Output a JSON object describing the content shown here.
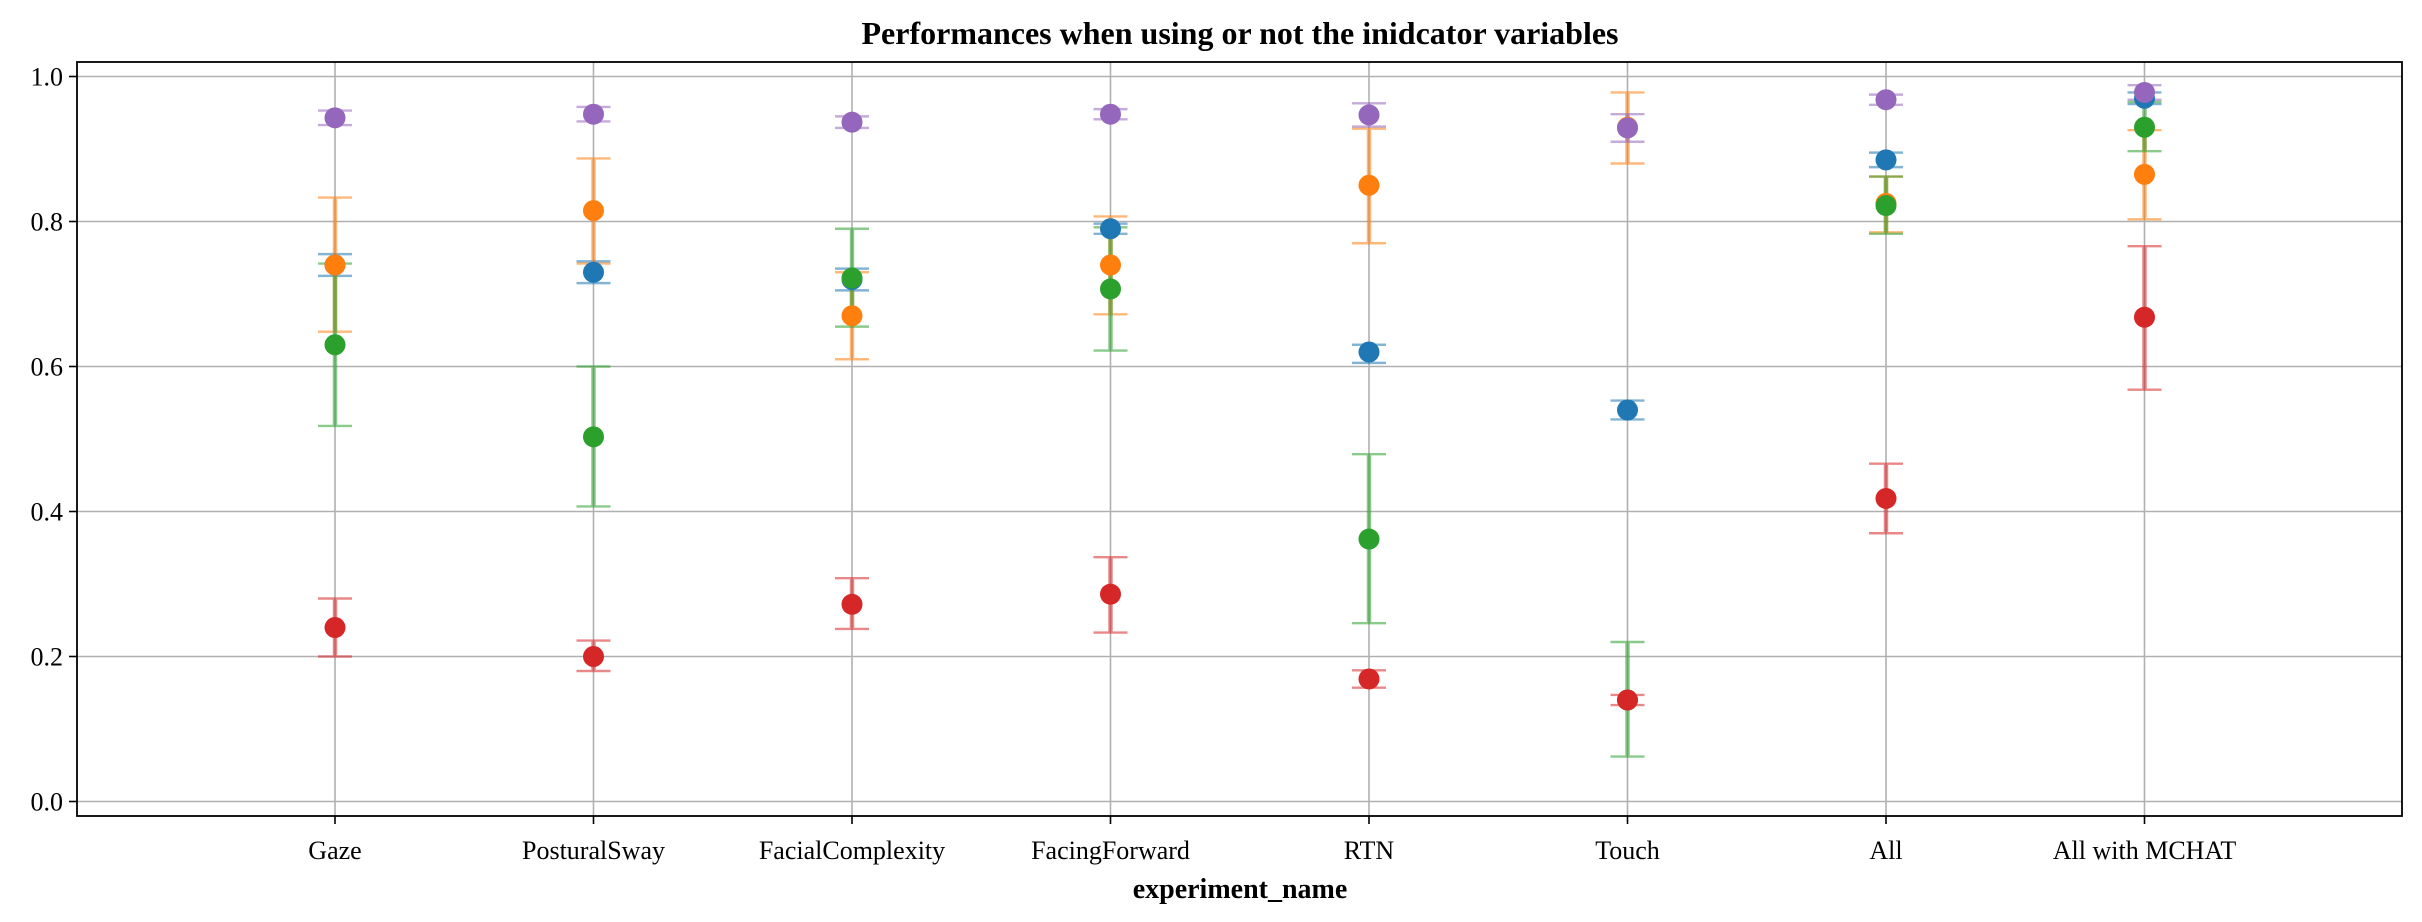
{
  "chart_data": {
    "type": "scatter",
    "title": "Performances when using or not the inidcator variables",
    "xlabel": "experiment_name",
    "ylabel": "",
    "ylim": [
      -0.02,
      1.02
    ],
    "yticks": [
      0.0,
      0.2,
      0.4,
      0.6,
      0.8,
      1.0
    ],
    "ytick_labels": [
      "0.0",
      "0.2",
      "0.4",
      "0.6",
      "0.8",
      "1.0"
    ],
    "categories": [
      "Gaze",
      "PosturalSway",
      "FacialComplexity",
      "FacingForward",
      "RTN",
      "Touch",
      "All",
      "All with MCHAT"
    ],
    "grid": true,
    "legend": "none",
    "series": [
      {
        "color": "#1f77b4",
        "values": [
          0.74,
          0.73,
          0.72,
          0.79,
          0.62,
          0.54,
          0.885,
          0.97
        ],
        "err_low": [
          0.725,
          0.715,
          0.705,
          0.783,
          0.605,
          0.527,
          0.875,
          0.962
        ],
        "err_high": [
          0.755,
          0.745,
          0.735,
          0.797,
          0.63,
          0.553,
          0.895,
          0.978
        ]
      },
      {
        "color": "#ff7f0e",
        "values": [
          0.74,
          0.815,
          0.67,
          0.74,
          0.85,
          0.93,
          0.825,
          0.865
        ],
        "err_low": [
          0.648,
          0.742,
          0.61,
          0.672,
          0.77,
          0.88,
          0.785,
          0.803
        ],
        "err_high": [
          0.833,
          0.887,
          0.73,
          0.807,
          0.928,
          0.978,
          0.862,
          0.926
        ]
      },
      {
        "color": "#2ca02c",
        "values": [
          0.63,
          0.503,
          0.722,
          0.707,
          0.362,
          0.14,
          0.822,
          0.93
        ],
        "err_low": [
          0.518,
          0.407,
          0.655,
          0.622,
          0.246,
          0.062,
          0.783,
          0.897
        ],
        "err_high": [
          0.742,
          0.6,
          0.79,
          0.792,
          0.479,
          0.22,
          0.862,
          0.965
        ]
      },
      {
        "color": "#d62728",
        "values": [
          0.24,
          0.2,
          0.272,
          0.286,
          0.169,
          0.14,
          0.418,
          0.668
        ],
        "err_low": [
          0.2,
          0.18,
          0.238,
          0.233,
          0.157,
          0.133,
          0.37,
          0.568
        ],
        "err_high": [
          0.28,
          0.222,
          0.308,
          0.337,
          0.181,
          0.147,
          0.466,
          0.766
        ]
      },
      {
        "color": "#9467bd",
        "values": [
          0.943,
          0.948,
          0.937,
          0.948,
          0.947,
          0.929,
          0.968,
          0.978
        ],
        "err_low": [
          0.933,
          0.938,
          0.929,
          0.941,
          0.931,
          0.91,
          0.961,
          0.968
        ],
        "err_high": [
          0.953,
          0.958,
          0.945,
          0.955,
          0.963,
          0.948,
          0.975,
          0.988
        ]
      }
    ]
  }
}
